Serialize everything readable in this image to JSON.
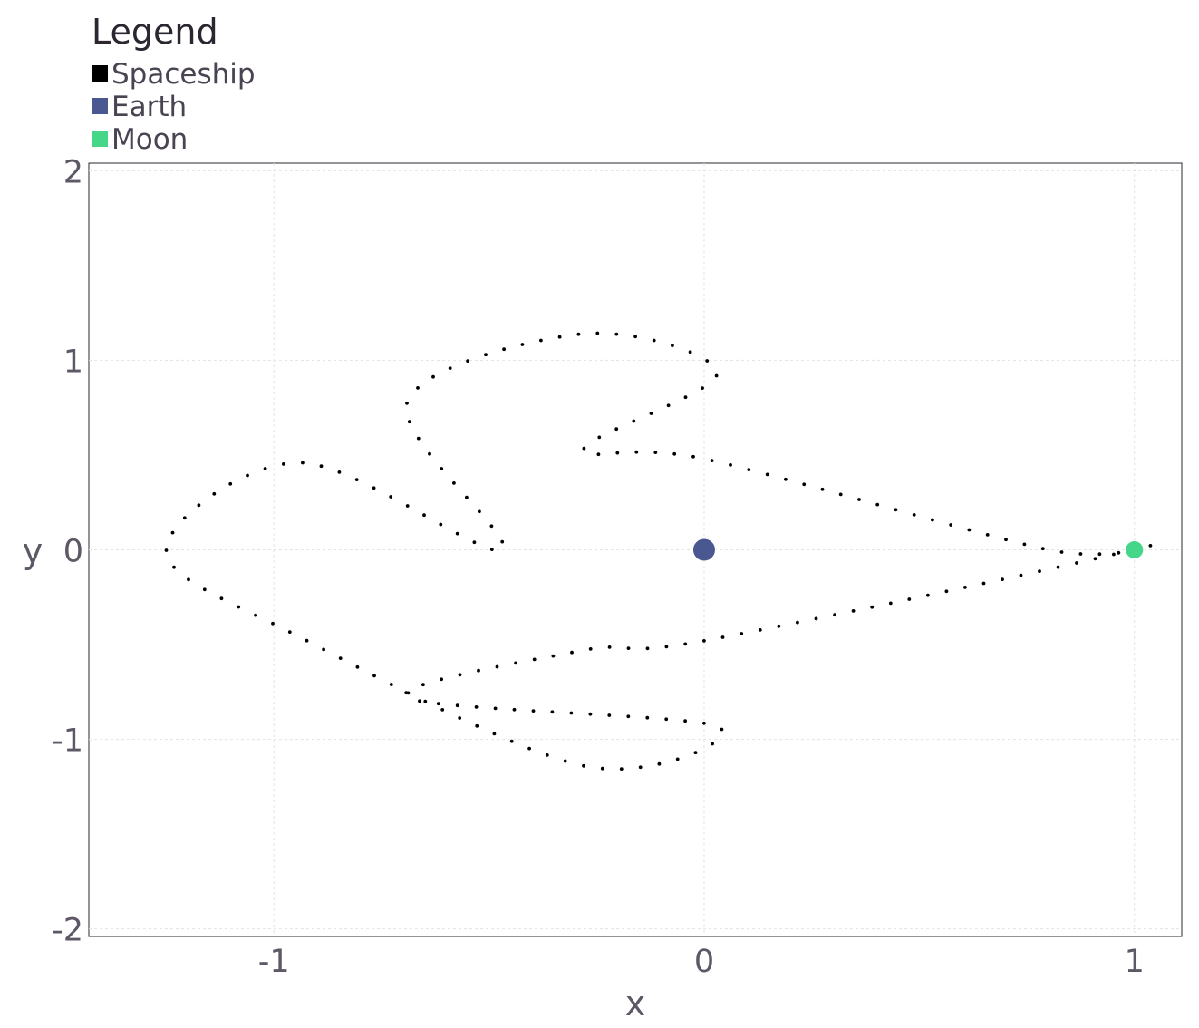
{
  "chart_data": {
    "type": "scatter",
    "title": "",
    "xlabel": "x",
    "ylabel": "y",
    "xlim": [
      -1.43,
      1.11
    ],
    "ylim": [
      -2.04,
      2.04
    ],
    "xticks": [
      -1,
      0,
      1
    ],
    "xtick_labels": [
      "-1",
      "0",
      "1"
    ],
    "yticks": [
      -2,
      -1,
      0,
      1,
      2
    ],
    "ytick_labels": [
      "-2",
      "-1",
      "0",
      "1",
      "2"
    ],
    "grid": true,
    "legend": {
      "title": "Legend",
      "placement": "top-left, outside plot",
      "entries": [
        {
          "label": "Spaceship",
          "color": "#000000"
        },
        {
          "label": "Earth",
          "color": "#4a5891"
        },
        {
          "label": "Moon",
          "color": "#45d68a"
        }
      ]
    },
    "series": [
      {
        "name": "Spaceship",
        "color": "#000000",
        "marker": "small-dot",
        "trajectory": "closed orbit (Arenstorf-type) around Earth and Moon, sampled as dots",
        "key_points": [
          {
            "x": 0.994,
            "y": 0.0
          },
          {
            "x": 0.8,
            "y": 0.0
          },
          {
            "x": 0.0,
            "y": 0.48
          },
          {
            "x": -0.28,
            "y": 0.53
          },
          {
            "x": 0.03,
            "y": 0.93
          },
          {
            "x": -0.28,
            "y": 1.14
          },
          {
            "x": -0.69,
            "y": 0.78
          },
          {
            "x": -0.47,
            "y": 0.0
          },
          {
            "x": -0.94,
            "y": 0.46
          },
          {
            "x": -1.25,
            "y": 0.0
          },
          {
            "x": -0.94,
            "y": -0.46
          },
          {
            "x": -0.28,
            "y": -1.14
          },
          {
            "x": 0.03,
            "y": -0.93
          },
          {
            "x": -0.69,
            "y": -0.78
          },
          {
            "x": -0.28,
            "y": -0.53
          },
          {
            "x": 0.0,
            "y": -0.48
          }
        ]
      },
      {
        "name": "Earth",
        "color": "#4a5891",
        "points": [
          {
            "x": 0.0,
            "y": 0.0
          }
        ]
      },
      {
        "name": "Moon",
        "color": "#45d68a",
        "points": [
          {
            "x": 1.0,
            "y": 0.0
          }
        ]
      }
    ]
  }
}
